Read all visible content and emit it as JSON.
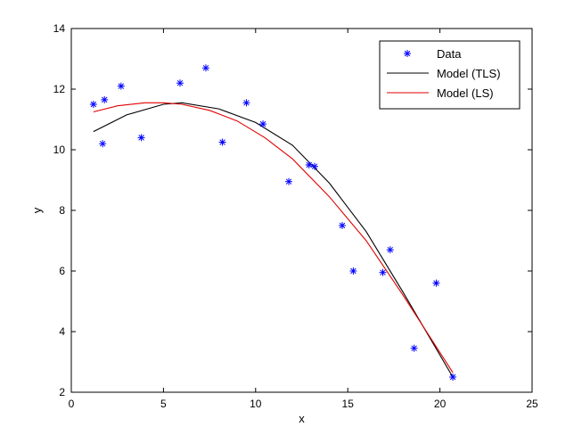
{
  "chart_data": {
    "type": "scatter",
    "xlabel": "x",
    "ylabel": "y",
    "xlim": [
      0,
      25
    ],
    "ylim": [
      2,
      14
    ],
    "xticks": [
      0,
      5,
      10,
      15,
      20,
      25
    ],
    "yticks": [
      2,
      4,
      6,
      8,
      10,
      12,
      14
    ],
    "grid": false,
    "legend_position": "top-right",
    "series": [
      {
        "name": "Data",
        "kind": "markers",
        "marker": "asterisk",
        "color": "#0000ff",
        "x": [
          1.2,
          1.7,
          1.8,
          2.7,
          3.8,
          5.9,
          7.3,
          8.2,
          9.5,
          10.4,
          11.8,
          12.9,
          13.2,
          14.7,
          15.3,
          16.9,
          17.3,
          18.6,
          19.8,
          20.7
        ],
        "y": [
          11.5,
          10.2,
          11.65,
          12.1,
          10.4,
          12.2,
          12.7,
          10.25,
          11.55,
          10.85,
          8.95,
          9.5,
          9.45,
          7.5,
          6.0,
          5.95,
          6.7,
          3.45,
          5.6,
          2.5
        ]
      },
      {
        "name": "Model (TLS)",
        "kind": "line",
        "color": "#000000",
        "x": [
          1.2,
          3.0,
          5.0,
          6.0,
          8.0,
          10.0,
          12.0,
          14.0,
          16.0,
          18.0,
          20.7
        ],
        "y": [
          10.6,
          11.15,
          11.5,
          11.55,
          11.35,
          10.9,
          10.15,
          8.9,
          7.3,
          5.3,
          2.5
        ]
      },
      {
        "name": "Model (LS)",
        "kind": "line",
        "color": "#e00000",
        "x": [
          1.2,
          2.5,
          4.0,
          5.0,
          6.0,
          7.5,
          9.0,
          10.5,
          12.0,
          14.0,
          16.0,
          18.0,
          20.7
        ],
        "y": [
          11.25,
          11.45,
          11.55,
          11.55,
          11.5,
          11.3,
          10.95,
          10.4,
          9.7,
          8.45,
          7.0,
          5.2,
          2.65
        ]
      }
    ]
  }
}
